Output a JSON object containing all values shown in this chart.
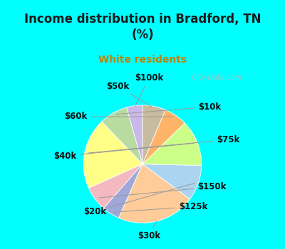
{
  "title": "Income distribution in Bradford, TN\n(%)",
  "subtitle": "White residents",
  "title_color": "#1a1a1a",
  "subtitle_color": "#b8860b",
  "background_cyan": "#00ffff",
  "background_chart": "#f0faf0",
  "labels": [
    "$100k",
    "$10k",
    "$75k",
    "$150k",
    "$125k",
    "$30k",
    "$20k",
    "$40k",
    "$60k",
    "$50k"
  ],
  "values": [
    4.5,
    8.0,
    20.0,
    7.0,
    5.0,
    22.0,
    10.0,
    13.0,
    6.5,
    6.5
  ],
  "colors": [
    "#c9b8e8",
    "#b8dba0",
    "#ffff88",
    "#f4b8c0",
    "#a0a8d8",
    "#ffcc99",
    "#aad4f0",
    "#ccff88",
    "#ffb366",
    "#c8bca0"
  ],
  "label_fontsize": 8.5,
  "figsize": [
    4.0,
    3.5
  ],
  "dpi": 100,
  "watermark": "  City-Data.com",
  "startangle": 90
}
